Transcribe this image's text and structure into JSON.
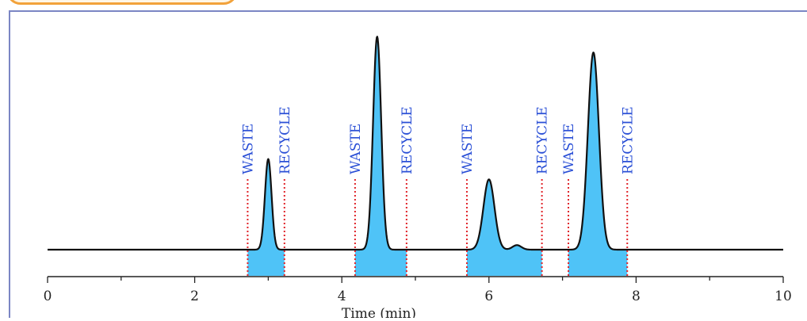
{
  "chart_data": {
    "type": "line",
    "title": "",
    "xlabel": "Time (min)",
    "ylabel": "",
    "xlim": [
      0,
      10
    ],
    "x_ticks": [
      "0",
      "2",
      "4",
      "6",
      "8",
      "10"
    ],
    "grid": false,
    "baseline": 0,
    "series": [
      {
        "peaks": [
          {
            "center": 3.0,
            "height": 0.4,
            "width": 0.045
          },
          {
            "center": 4.48,
            "height": 0.94,
            "width": 0.055
          },
          {
            "center": 6.0,
            "height": 0.31,
            "width": 0.075
          },
          {
            "center": 6.38,
            "height": 0.02,
            "width": 0.06
          },
          {
            "center": 7.42,
            "height": 0.87,
            "width": 0.075
          }
        ]
      }
    ],
    "cut_lines": [
      {
        "x": 2.72,
        "label": "WASTE"
      },
      {
        "x": 3.22,
        "label": "RECYCLE"
      },
      {
        "x": 4.18,
        "label": "WASTE"
      },
      {
        "x": 4.88,
        "label": "RECYCLE"
      },
      {
        "x": 5.7,
        "label": "WASTE"
      },
      {
        "x": 6.72,
        "label": "RECYCLE"
      },
      {
        "x": 7.08,
        "label": "WASTE"
      },
      {
        "x": 7.88,
        "label": "RECYCLE"
      }
    ],
    "fill_regions": [
      [
        2.72,
        3.22
      ],
      [
        4.18,
        4.88
      ],
      [
        5.7,
        6.72
      ],
      [
        7.08,
        7.88
      ]
    ],
    "colors": {
      "trace": "#111111",
      "fill": "#4fc3f7",
      "cut_line": "#e0242a",
      "cut_label": "#2a4fd6",
      "axis": "#222222",
      "frame": "#7b86c4",
      "tab": "#f2a23a"
    }
  }
}
